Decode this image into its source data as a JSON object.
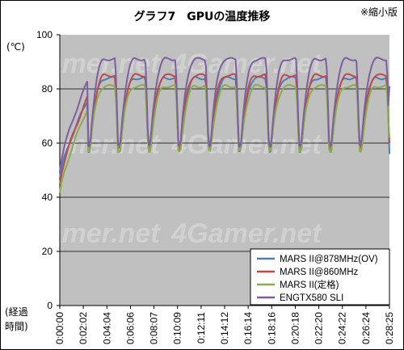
{
  "chart_data": {
    "type": "line",
    "title": "グラフ7　GPUの温度推移",
    "corner_note": "※縮小版",
    "ylabel": "(℃)",
    "xlabel_line1": "(経過",
    "xlabel_line2": "時間)",
    "watermark": "4Gamer.net",
    "ylim": [
      0,
      100
    ],
    "yticks": [
      0,
      20,
      40,
      60,
      80,
      100
    ],
    "x_tick_labels": [
      "0:00:00",
      "0:02:02",
      "0:04:04",
      "0:06:06",
      "0:08:07",
      "0:10:09",
      "0:12:11",
      "0:14:12",
      "0:16:14",
      "0:18:16",
      "0:20:18",
      "0:22:20",
      "0:24:22",
      "0:26:24",
      "0:28:25"
    ],
    "grid": true,
    "legend_position": "bottom-right",
    "colors": {
      "plot_bg": "#c0c0c0",
      "grid": "#000000",
      "mars_oc": "#4a7ebb",
      "mars_860": "#be4b48",
      "mars_stock": "#8aac4c",
      "engtx580": "#7d5fa0"
    },
    "cycle_count": 10,
    "series": [
      {
        "name": "MARS II@878MHz(OV)",
        "color_key": "mars_oc",
        "start": 47,
        "low": 57,
        "peak": 84,
        "end": 56
      },
      {
        "name": "MARS II@860MHz",
        "color_key": "mars_860",
        "start": 45,
        "low": 58,
        "peak": 85,
        "end": 60
      },
      {
        "name": "MARS II(定格)",
        "color_key": "mars_stock",
        "start": 41,
        "low": 57,
        "peak": 81,
        "end": 62
      },
      {
        "name": "ENGTX580 SLI",
        "color_key": "engtx580",
        "start": 50,
        "low": 59,
        "peak": 91,
        "end": 81
      }
    ]
  }
}
